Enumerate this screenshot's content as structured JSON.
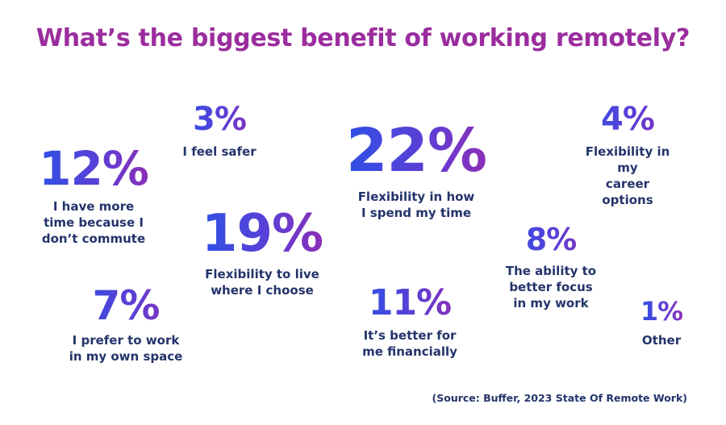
{
  "title": "What’s the biggest benefit of working remotely?",
  "source": "(Source: Buffer, 2023 State Of Remote Work)",
  "gradient_colors": [
    "#2f50e6",
    "#8b2fb7"
  ],
  "title_color": "#9b2d9e",
  "label_color": "#23346b",
  "chart_data": {
    "type": "table",
    "title": "What’s the biggest benefit of working remotely?",
    "items": [
      {
        "value": "22%",
        "label": "Flexibility in how\nI spend my time"
      },
      {
        "value": "19%",
        "label": "Flexibility to live\nwhere I choose"
      },
      {
        "value": "12%",
        "label": "I have more\ntime because I\ndon’t commute"
      },
      {
        "value": "11%",
        "label": "It’s better for\nme financially"
      },
      {
        "value": "8%",
        "label": "The ability to\nbetter focus\nin my work"
      },
      {
        "value": "7%",
        "label": "I prefer to work\nin my own space"
      },
      {
        "value": "4%",
        "label": "Flexibility in my\ncareer options"
      },
      {
        "value": "3%",
        "label": "I feel safer"
      },
      {
        "value": "1%",
        "label": "Other"
      }
    ]
  }
}
